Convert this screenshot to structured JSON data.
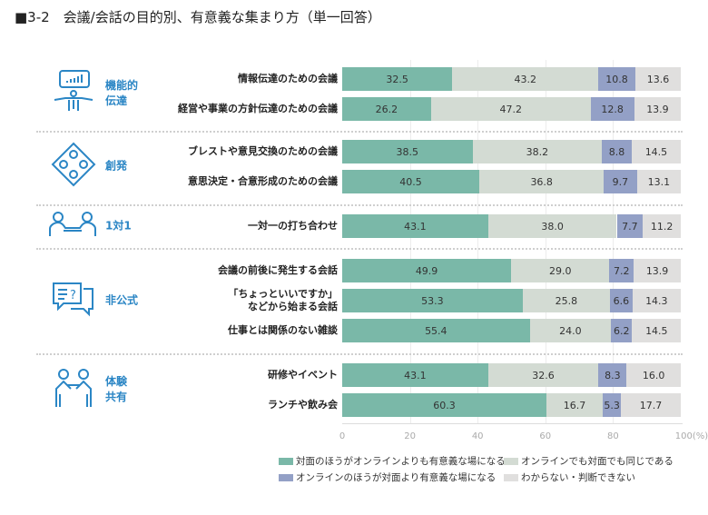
{
  "title": "■3-2　会議/会話の目的別、有意義な集まり方（単一回答）",
  "chart_data": {
    "type": "bar",
    "orientation": "horizontal",
    "stacked": true,
    "title": "■3-2　会議/会話の目的別、有意義な集まり方（単一回答）",
    "xlim": [
      0,
      100
    ],
    "xticks": [
      "0",
      "20",
      "40",
      "60",
      "80",
      "100(%)"
    ],
    "grid": true,
    "legend_position": "bottom",
    "groups": [
      {
        "label": "機能的\n伝達",
        "icon": "presenter-chart-icon",
        "rows": [
          0,
          1
        ]
      },
      {
        "label": "創発",
        "icon": "brainstorm-circle-icon",
        "rows": [
          2,
          3
        ]
      },
      {
        "label": "1対1",
        "icon": "one-on-one-icon",
        "rows": [
          4
        ]
      },
      {
        "label": "非公式",
        "icon": "speech-bubble-question-icon",
        "rows": [
          5,
          6,
          7
        ]
      },
      {
        "label": "体験\n共有",
        "icon": "shared-experience-icon",
        "rows": [
          8,
          9
        ]
      }
    ],
    "categories": [
      "情報伝達のための会議",
      "経営や事業の方針伝達のための会議",
      "ブレストや意見交換のための会議",
      "意思決定・合意形成のための会議",
      "一対一の打ち合わせ",
      "会議の前後に発生する会話",
      "「ちょっといいですか」\nなどから始まる会話",
      "仕事とは関係のない雑談",
      "研修やイベント",
      "ランチや飲み会"
    ],
    "series": [
      {
        "name": "対面のほうがオンラインよりも有意義な場になる",
        "color": "#7ab8a8",
        "values": [
          32.5,
          26.2,
          38.5,
          40.5,
          43.1,
          49.9,
          53.3,
          55.4,
          43.1,
          60.3
        ]
      },
      {
        "name": "オンラインでも対面でも同じである",
        "color": "#d3dbd3",
        "values": [
          43.2,
          47.2,
          38.2,
          36.8,
          38.0,
          29.0,
          25.8,
          24.0,
          32.6,
          16.7
        ]
      },
      {
        "name": "オンラインのほうが対面より有意義な場になる",
        "color": "#93a0c6",
        "values": [
          10.8,
          12.8,
          8.8,
          9.7,
          7.7,
          7.2,
          6.6,
          6.2,
          8.3,
          5.3
        ]
      },
      {
        "name": "わからない・判断できない",
        "color": "#e0dfde",
        "values": [
          13.6,
          13.9,
          14.5,
          13.1,
          11.2,
          13.9,
          14.3,
          14.5,
          16.0,
          17.7
        ]
      }
    ]
  }
}
